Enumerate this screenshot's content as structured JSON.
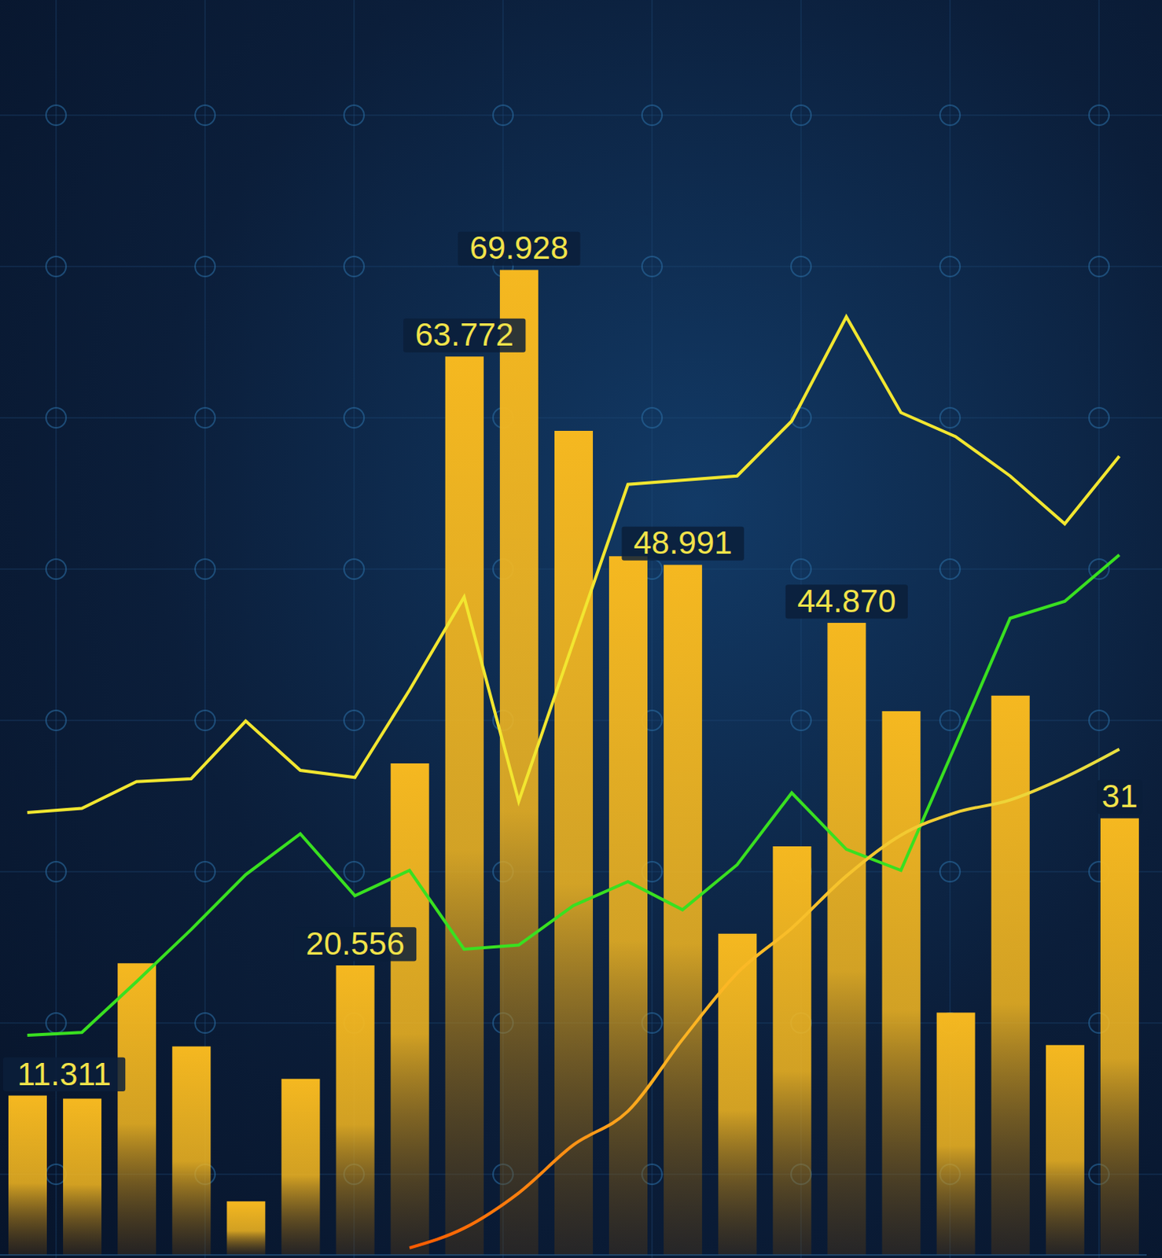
{
  "chart_data": {
    "type": "bar",
    "categories": [
      null,
      null,
      null,
      null,
      null,
      null,
      null,
      null,
      null,
      null,
      null,
      null,
      null,
      null,
      null,
      null,
      null,
      null,
      null,
      null,
      null
    ],
    "values": [
      11.311,
      11.1,
      20.7,
      14.8,
      3.8,
      12.5,
      20.556,
      34.9,
      63.772,
      69.928,
      58.5,
      49.6,
      48.991,
      22.8,
      29.0,
      44.87,
      38.6,
      17.2,
      39.7,
      14.9,
      31
    ],
    "value_labels": [
      "11.311",
      null,
      null,
      null,
      null,
      null,
      "20.556",
      null,
      "63.772",
      "69.928",
      null,
      null,
      "48.991",
      null,
      null,
      "44.870",
      null,
      null,
      null,
      null,
      "31"
    ],
    "color": "#f5b820",
    "data_labels": true,
    "tick_labels": false,
    "ylim": [
      0,
      88
    ],
    "series": [
      {
        "type": "line",
        "color": "#f2e630",
        "line_style": "solid",
        "values": [
          31.4,
          31.7,
          33.6,
          33.8,
          37.9,
          34.4,
          33.9,
          40.1,
          46.7,
          32.2,
          43.5,
          54.7,
          55.0,
          55.3,
          59.2,
          66.6,
          59.8,
          58.1,
          55.3,
          51.9,
          56.7
        ]
      },
      {
        "type": "line",
        "color": "#39e020",
        "line_style": "solid",
        "values": [
          15.6,
          15.8,
          19.4,
          23.1,
          27.0,
          29.9,
          25.5,
          27.3,
          21.7,
          22.0,
          24.8,
          26.5,
          24.5,
          27.7,
          32.8,
          28.8,
          27.3,
          36.2,
          45.2,
          46.4,
          49.7
        ]
      },
      {
        "type": "line",
        "color": "#e8e040",
        "line_style": "smooth",
        "values": [
          null,
          null,
          null,
          null,
          null,
          null,
          null,
          0.5,
          1.9,
          4.4,
          7.8,
          10.2,
          15.3,
          20.0,
          23.2,
          26.9,
          29.8,
          31.4,
          32.3,
          33.9,
          35.9
        ]
      }
    ]
  }
}
